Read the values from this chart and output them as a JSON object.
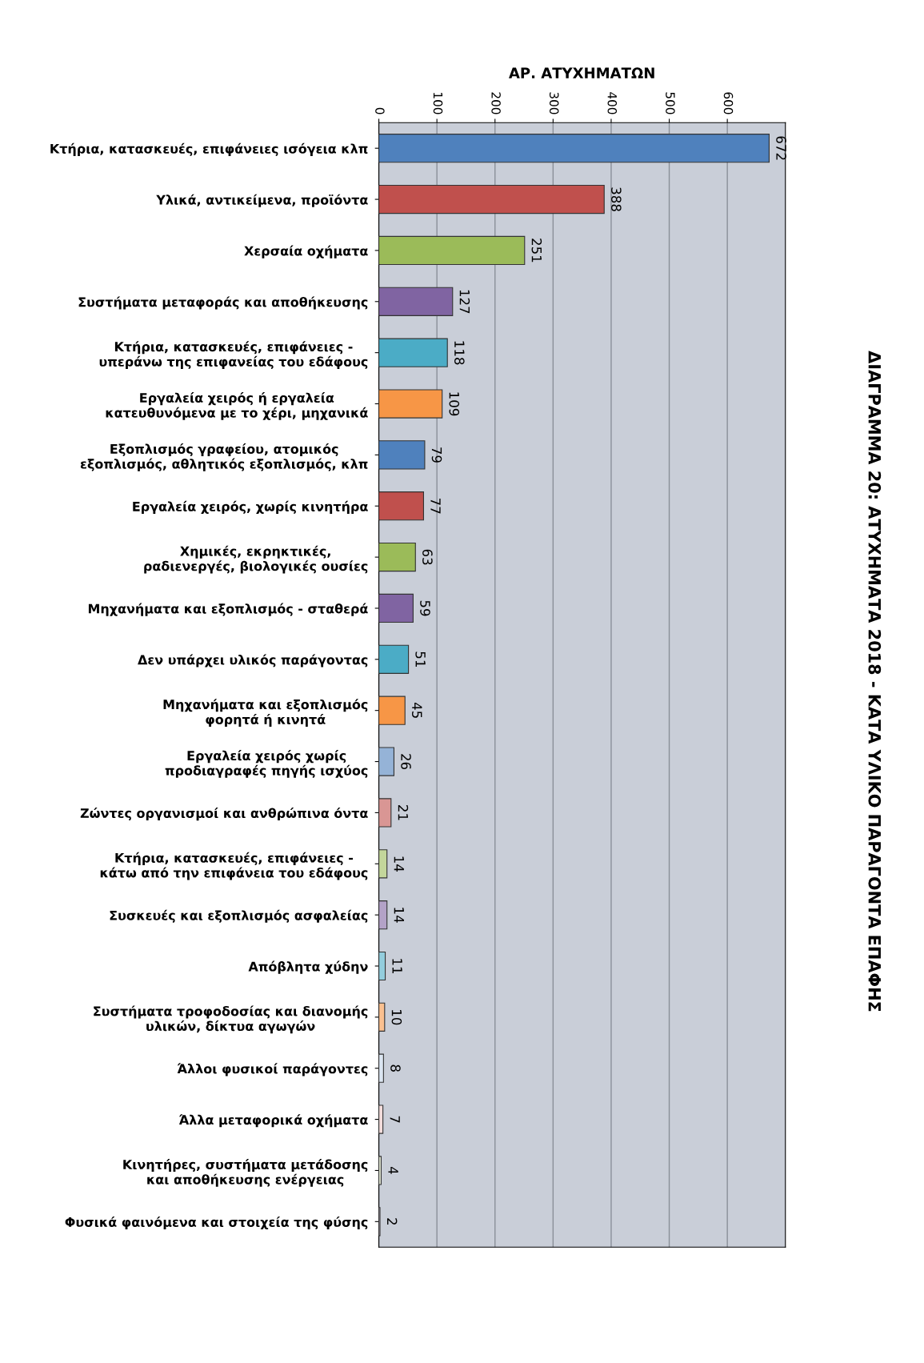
{
  "chart_data": {
    "type": "bar",
    "orientation": "horizontal",
    "title": "ΔΙΑΓΡΑΜΜΑ 20: ΑΤΥΧΗΜΑΤΑ 2018 - ΚΑΤΑ ΥΛΙΚΟ ΠΑΡΑΓΟΝΤΑ ΕΠΑΦΗΣ",
    "xlabel": "ΑΡ. ΑΤΥΧΗΜΑΤΩΝ",
    "categories": [
      "Κτήρια, κατασκευές, επιφάνειες ισόγεια κλπ",
      "Υλικά, αντικείμενα, προϊόντα",
      "Χερσαία οχήματα",
      "Συστήματα μεταφοράς και αποθήκευσης",
      "Κτήρια, κατασκευές, επιφάνειες -\nυπεράνω της επιφανείας του εδάφους",
      "Εργαλεία χειρός ή εργαλεία\nκατευθυνόμενα με το χέρι, μηχανικά",
      "Εξοπλισμός γραφείου, ατομικός\nεξοπλισμός, αθλητικός εξοπλισμός, κλπ",
      "Εργαλεία χειρός, χωρίς κινητήρα",
      "Χημικές, εκρηκτικές,\nραδιενεργές, βιολογικές ουσίες",
      "Μηχανήματα και εξοπλισμός - σταθερά",
      "Δεν υπάρχει υλικός παράγοντας",
      "Μηχανήματα και εξοπλισμός\nφορητά ή κινητά",
      "Εργαλεία χειρός χωρίς\nπροδιαγραφές πηγής ισχύος",
      "Ζώντες οργανισμοί και ανθρώπινα όντα",
      "Κτήρια, κατασκευές, επιφάνειες -\nκάτω από την επιφάνεια του εδάφους",
      "Συσκευές και εξοπλισμός ασφαλείας",
      "Απόβλητα χύδην",
      "Συστήματα τροφοδοσίας και διανομής\nυλικών, δίκτυα αγωγών",
      "Άλλοι φυσικοί παράγοντες",
      "Άλλα μεταφορικά οχήματα",
      "Κινητήρες, συστήματα μετάδοσης\nκαι αποθήκευσης ενέργειας",
      "Φυσικά φαινόμενα και στοιχεία της φύσης"
    ],
    "values": [
      672,
      388,
      251,
      127,
      118,
      109,
      79,
      77,
      63,
      59,
      51,
      45,
      26,
      21,
      14,
      14,
      11,
      10,
      8,
      7,
      4,
      2
    ],
    "colors": [
      "#4f81bd",
      "#c0504d",
      "#9bbb59",
      "#8064a2",
      "#4bacc6",
      "#f79646",
      "#4f81bd",
      "#c0504d",
      "#9bbb59",
      "#8064a2",
      "#4bacc6",
      "#f79646",
      "#95b3d7",
      "#d99694",
      "#c3d69b",
      "#b3a2c7",
      "#93cddd",
      "#fac090",
      "#dbe5f1",
      "#f2dcdb",
      "#ebf1dd",
      "#e5e0ec"
    ],
    "xlim": [
      0,
      700
    ],
    "xticks": [
      0,
      100,
      200,
      300,
      400,
      500,
      600
    ],
    "grid": "x",
    "data_labels": true
  }
}
